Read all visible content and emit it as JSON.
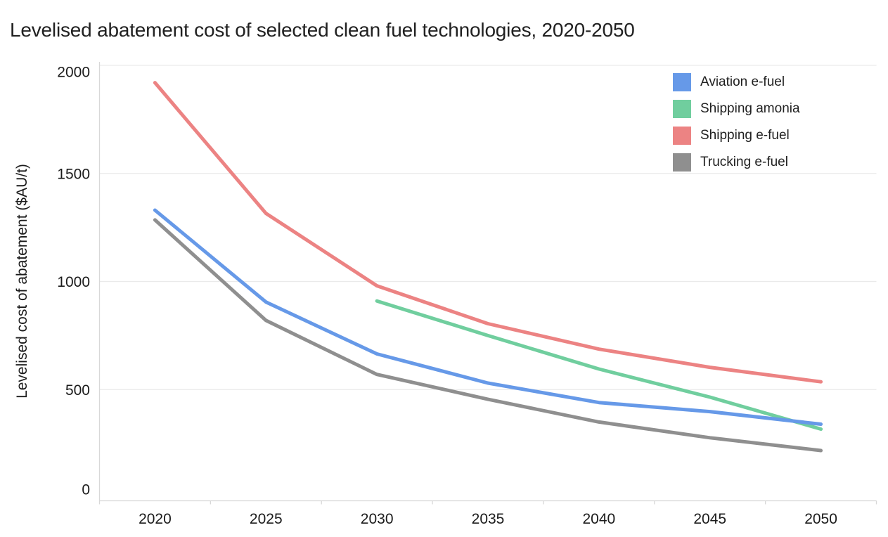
{
  "title": "Levelised abatement cost of selected clean fuel technologies, 2020-2050",
  "chart_data": {
    "type": "line",
    "title": "Levelised abatement cost of selected clean fuel technologies, 2020-2050",
    "xlabel": "",
    "ylabel": "Levelised cost of abatement ($AU/t)",
    "x": [
      2020,
      2025,
      2030,
      2035,
      2040,
      2045,
      2050
    ],
    "x_tick_labels": [
      "2020",
      "2025",
      "2030",
      "2035",
      "2040",
      "2045",
      "2050"
    ],
    "yticks": [
      0,
      500,
      1000,
      1500,
      2000
    ],
    "y_tick_labels": [
      "0",
      "500",
      "1000",
      "1500",
      "2000"
    ],
    "ylim": [
      0,
      2000
    ],
    "grid": "horizontal",
    "legend_position": "top-right",
    "series": [
      {
        "name": "Aviation e-fuel",
        "color": "#6699E8",
        "values": [
          1330,
          905,
          665,
          530,
          440,
          398,
          340
        ]
      },
      {
        "name": "Shipping amonia",
        "color": "#70CE9E",
        "values": [
          null,
          null,
          910,
          750,
          595,
          465,
          317
        ]
      },
      {
        "name": "Shipping e-fuel",
        "color": "#EC8383",
        "values": [
          1920,
          1315,
          980,
          805,
          687,
          603,
          536
        ]
      },
      {
        "name": "Trucking e-fuel",
        "color": "#8F8F8F",
        "values": [
          1285,
          820,
          570,
          455,
          350,
          277,
          218
        ]
      }
    ],
    "legend_order": [
      "Aviation e-fuel",
      "Shipping amonia",
      "Shipping e-fuel",
      "Trucking e-fuel"
    ],
    "colors": {
      "gridline": "#EAEAEA",
      "axis_line": "#D8D8D8"
    }
  }
}
